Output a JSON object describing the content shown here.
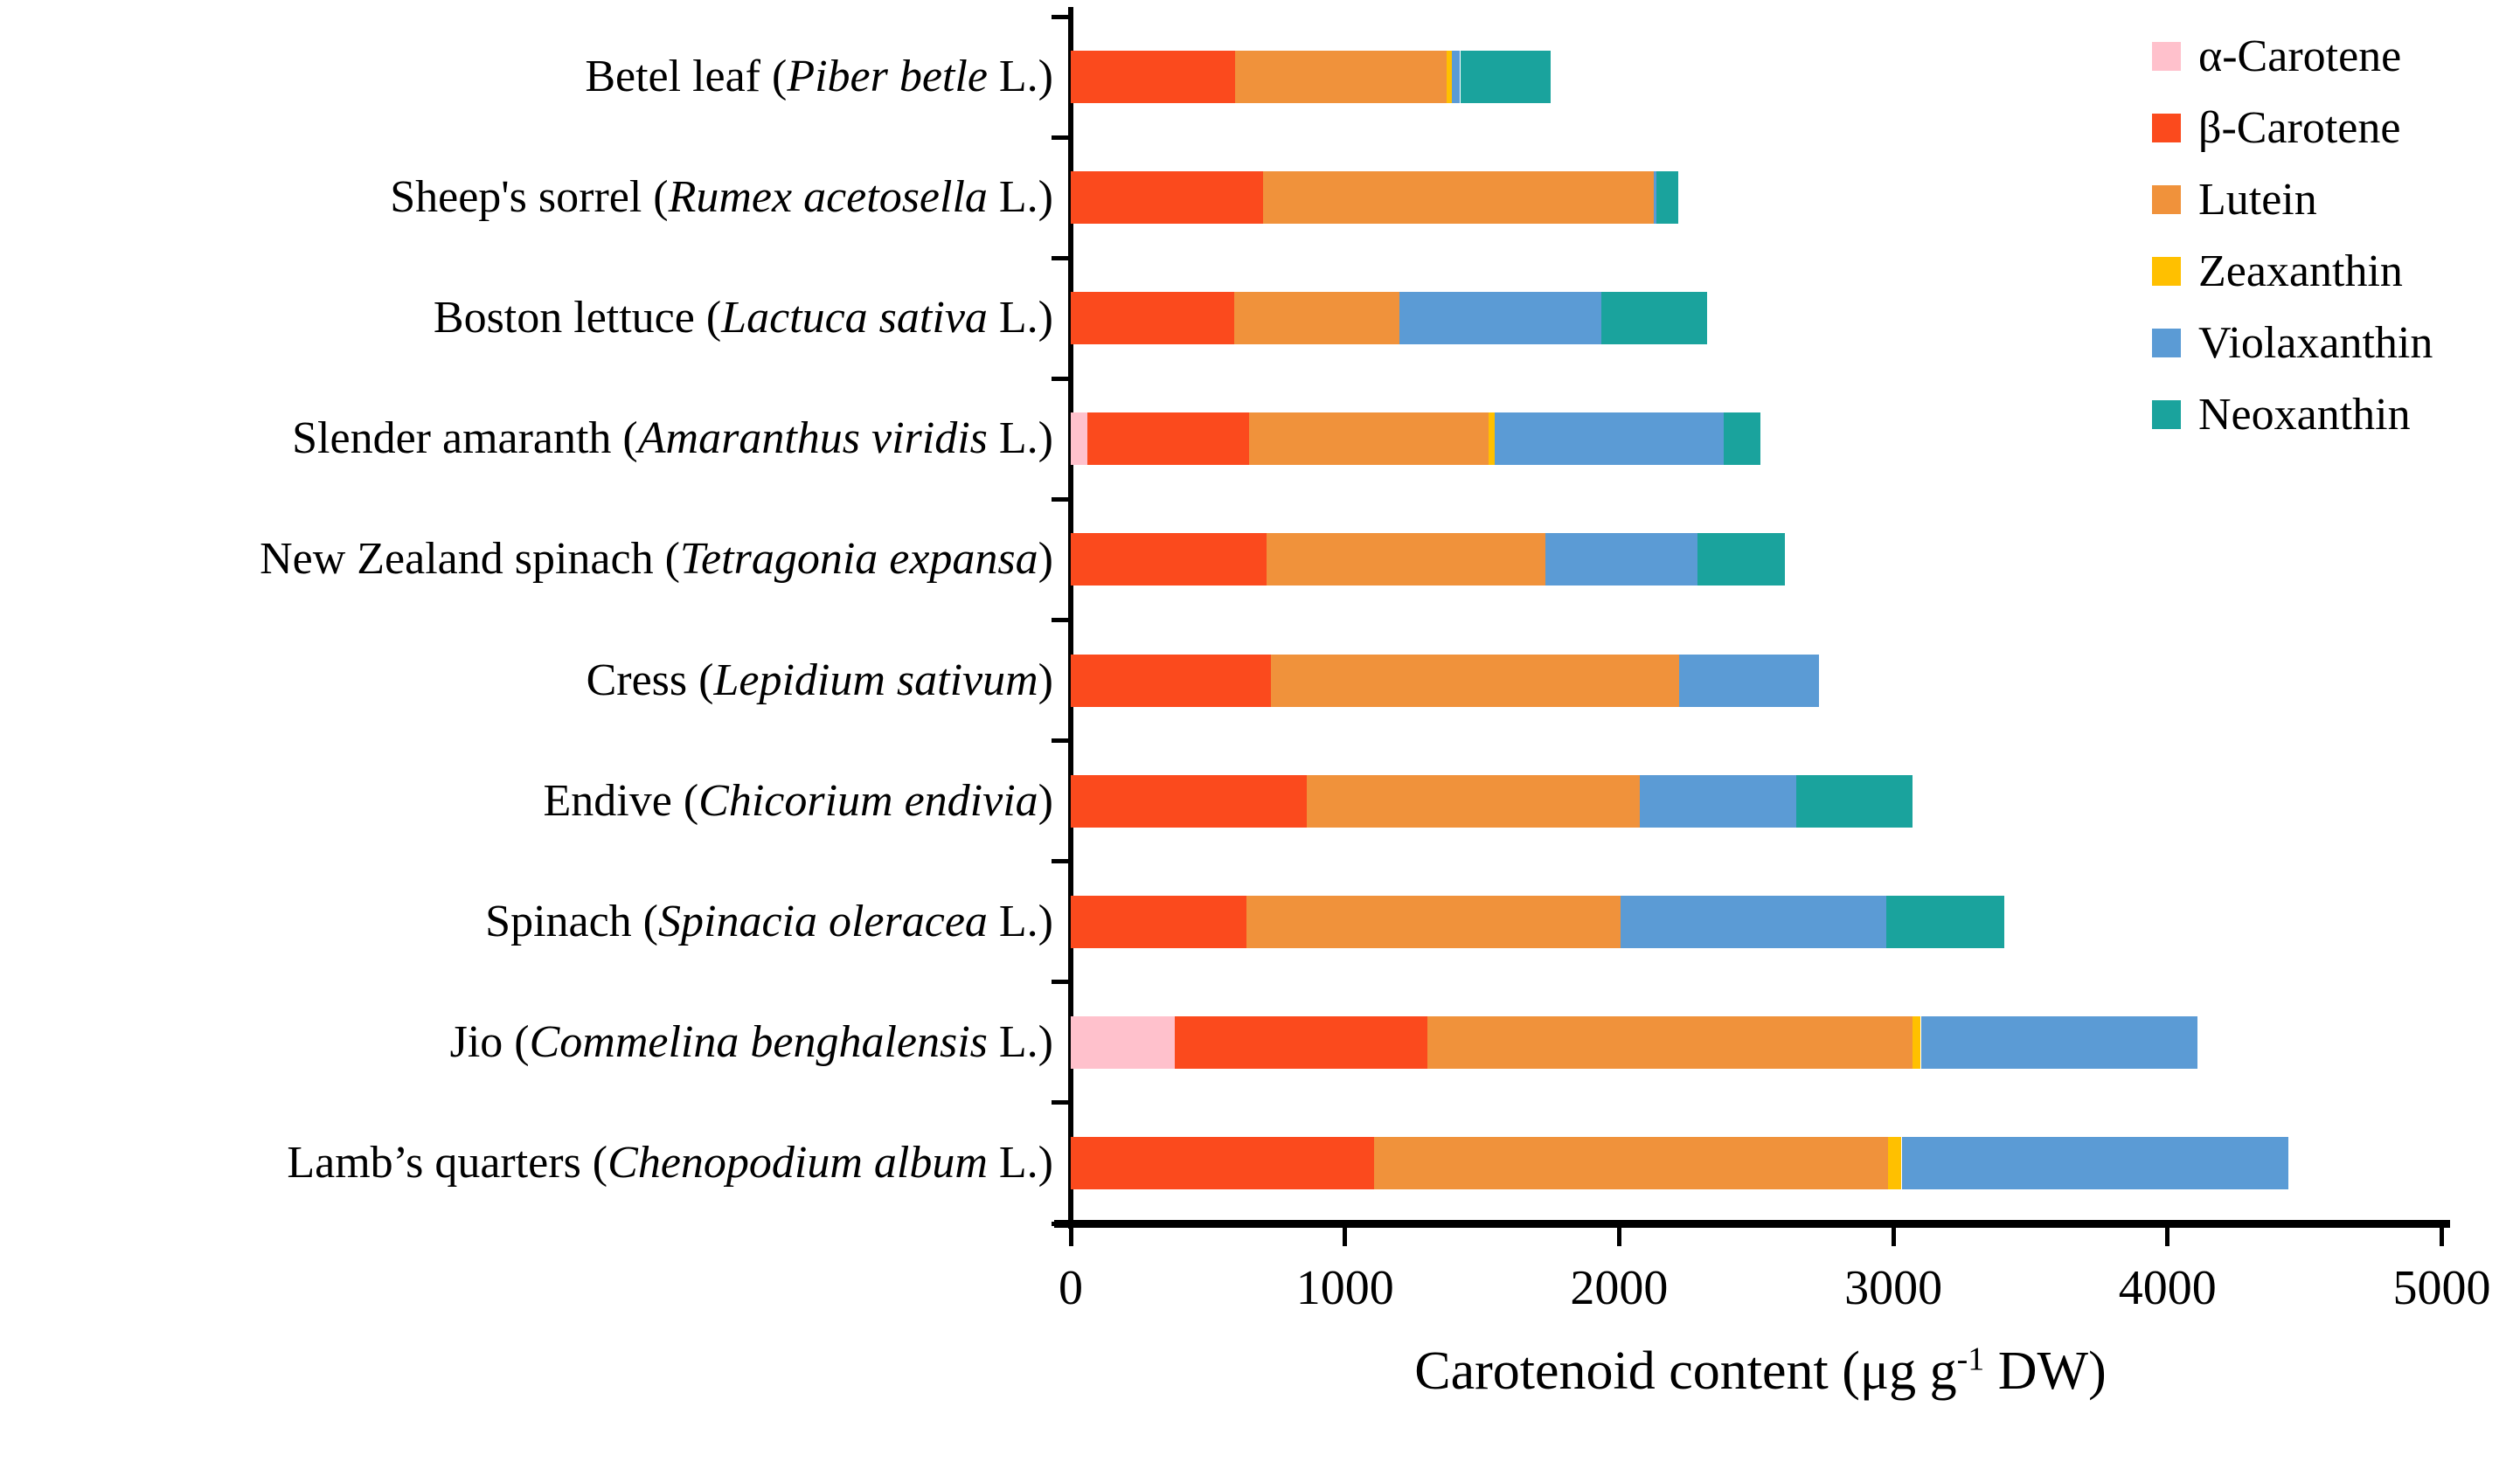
{
  "chart_data": {
    "type": "bar",
    "orientation": "horizontal",
    "stacked": true,
    "xlabel_parts": {
      "pre": "Carotenoid content (μg g",
      "sup": "-1",
      "post": " DW)"
    },
    "x_ticks": [
      "0",
      "1000",
      "2000",
      "3000",
      "4000",
      "5000"
    ],
    "xlim": [
      0,
      5000
    ],
    "grid": false,
    "legend_position": "upper-right",
    "categories": [
      {
        "label_pre": "Betel leaf (",
        "label_italic": "Piber betle",
        "label_post": " L.)"
      },
      {
        "label_pre": "Sheep's sorrel (",
        "label_italic": "Rumex acetosella",
        "label_post": " L.)"
      },
      {
        "label_pre": "Boston lettuce (",
        "label_italic": "Lactuca sativa",
        "label_post": " L.)"
      },
      {
        "label_pre": "Slender amaranth (",
        "label_italic": "Amaranthus viridis",
        "label_post": " L.)"
      },
      {
        "label_pre": "New Zealand spinach (",
        "label_italic": "Tetragonia expansa",
        "label_post": ")"
      },
      {
        "label_pre": "Cress (",
        "label_italic": "Lepidium sativum",
        "label_post": ")"
      },
      {
        "label_pre": "Endive (",
        "label_italic": "Chicorium endivia",
        "label_post": ")"
      },
      {
        "label_pre": "Spinach (",
        "label_italic": "Spinacia oleracea",
        "label_post": " L.)"
      },
      {
        "label_pre": "Jio (",
        "label_italic": "Commelina benghalensis",
        "label_post": " L.)"
      },
      {
        "label_pre": "Lamb’s quarters (",
        "label_italic": "Chenopodium album",
        "label_post": " L.)"
      }
    ],
    "series": [
      {
        "name": "α-Carotene",
        "color": "#FFC1CC",
        "values": [
          0,
          0,
          0,
          60,
          0,
          0,
          0,
          0,
          380,
          0
        ]
      },
      {
        "name": "β-Carotene",
        "color": "#FB4A1D",
        "values": [
          600,
          700,
          595,
          590,
          715,
          730,
          860,
          640,
          920,
          1105
        ]
      },
      {
        "name": "Lutein",
        "color": "#F0923B",
        "values": [
          770,
          1425,
          605,
          875,
          1015,
          1490,
          1215,
          1365,
          1770,
          1875
        ]
      },
      {
        "name": "Zeaxanthin",
        "color": "#FFC000",
        "values": [
          20,
          0,
          0,
          20,
          0,
          0,
          0,
          0,
          30,
          50
        ]
      },
      {
        "name": "Violaxanthin",
        "color": "#5B9BD5",
        "values": [
          30,
          10,
          735,
          835,
          555,
          510,
          570,
          970,
          1010,
          1410
        ]
      },
      {
        "name": "Neoxanthin",
        "color": "#1AA39D",
        "values": [
          330,
          80,
          385,
          135,
          320,
          0,
          425,
          430,
          0,
          0
        ]
      }
    ],
    "totals": [
      1750,
      2215,
      2320,
      2515,
      2605,
      2730,
      3070,
      3405,
      4110,
      4440
    ]
  }
}
